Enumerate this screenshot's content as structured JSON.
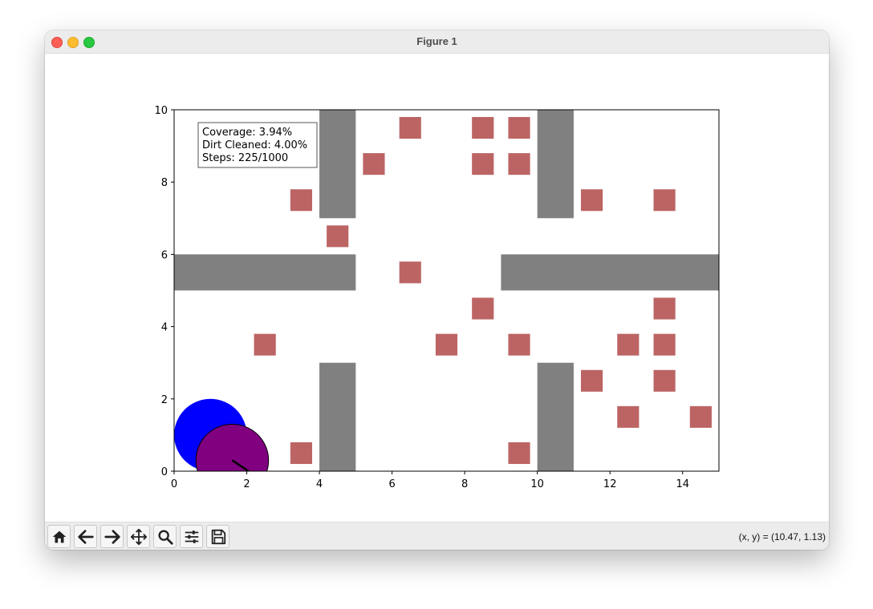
{
  "window": {
    "title": "Figure 1"
  },
  "toolbar": {
    "buttons": [
      {
        "name": "home-button",
        "icon": "home-icon"
      },
      {
        "name": "back-button",
        "icon": "arrow-left-icon"
      },
      {
        "name": "forward-button",
        "icon": "arrow-right-icon"
      },
      {
        "name": "pan-button",
        "icon": "move-icon"
      },
      {
        "name": "zoom-button",
        "icon": "magnifier-icon"
      },
      {
        "name": "configure-subplots-button",
        "icon": "sliders-icon"
      },
      {
        "name": "save-button",
        "icon": "floppy-disk-icon"
      }
    ],
    "coords": "(x, y) = (10.47, 1.13)"
  },
  "info_box": {
    "coverage": "Coverage: 3.94%",
    "dirt_cleaned": "Dirt Cleaned: 4.00%",
    "steps": "Steps: 225/1000"
  },
  "chart_data": {
    "type": "scatter",
    "xlim": [
      0,
      15
    ],
    "ylim": [
      0,
      10
    ],
    "x_ticks": [
      0,
      2,
      4,
      6,
      8,
      10,
      12,
      14
    ],
    "y_ticks": [
      0,
      2,
      4,
      6,
      8,
      10
    ],
    "grid": false,
    "colors": {
      "wall": "#808080",
      "dirt": "#bc6464",
      "robot_footprint": "#0000ff",
      "robot": "#800080",
      "heading": "#000000"
    },
    "walls": [
      {
        "x0": 4,
        "x1": 5,
        "y0": 7,
        "y1": 10
      },
      {
        "x0": 10,
        "x1": 11,
        "y0": 7,
        "y1": 10
      },
      {
        "x0": 0,
        "x1": 5,
        "y0": 5,
        "y1": 6
      },
      {
        "x0": 9,
        "x1": 15,
        "y0": 5,
        "y1": 6
      },
      {
        "x0": 4,
        "x1": 5,
        "y0": 0,
        "y1": 3
      },
      {
        "x0": 10,
        "x1": 11,
        "y0": 0,
        "y1": 3
      }
    ],
    "dirt": [
      [
        6.5,
        9.5
      ],
      [
        8.5,
        9.5
      ],
      [
        9.5,
        9.5
      ],
      [
        5.5,
        8.5
      ],
      [
        8.5,
        8.5
      ],
      [
        9.5,
        8.5
      ],
      [
        3.5,
        7.5
      ],
      [
        11.5,
        7.5
      ],
      [
        13.5,
        7.5
      ],
      [
        4.5,
        6.5
      ],
      [
        6.5,
        5.5
      ],
      [
        8.5,
        4.5
      ],
      [
        13.5,
        4.5
      ],
      [
        2.5,
        3.5
      ],
      [
        7.5,
        3.5
      ],
      [
        9.5,
        3.5
      ],
      [
        12.5,
        3.5
      ],
      [
        13.5,
        3.5
      ],
      [
        11.5,
        2.5
      ],
      [
        13.5,
        2.5
      ],
      [
        12.5,
        1.5
      ],
      [
        14.5,
        1.5
      ],
      [
        3.5,
        0.5
      ],
      [
        9.5,
        0.5
      ]
    ],
    "dirt_size": 0.6,
    "robot_footprint": {
      "x": 1.0,
      "y": 1.0,
      "r": 1.0
    },
    "robot": {
      "x": 1.6,
      "y": 0.3,
      "r": 1.0
    },
    "heading": {
      "x0": 1.6,
      "x1": 2.05,
      "y0": 0.3,
      "y1": 0.0
    }
  }
}
